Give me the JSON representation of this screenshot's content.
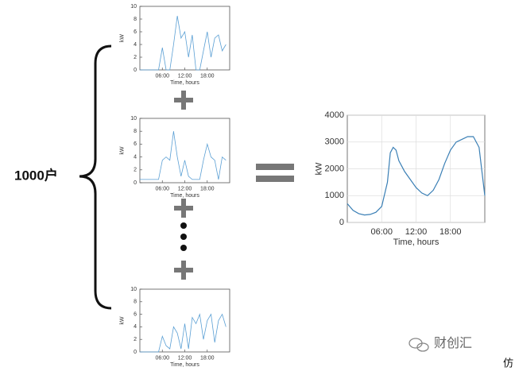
{
  "label": "1000户",
  "watermark": "财创汇",
  "corner_text": "仿",
  "chart_data": [
    {
      "type": "line",
      "xlabel": "Time, hours",
      "ylabel": "kW",
      "color": "#5a9fd4",
      "grid": false,
      "x": [
        0,
        1,
        2,
        3,
        4,
        5,
        6,
        7,
        8,
        9,
        10,
        11,
        12,
        13,
        14,
        15,
        16,
        17,
        18,
        19,
        20,
        21,
        22,
        23
      ],
      "values": [
        0,
        0,
        0,
        0,
        0,
        0,
        3.5,
        0,
        0,
        4,
        8.5,
        5,
        6,
        2,
        5.5,
        0,
        0,
        3,
        6,
        2,
        5,
        5.5,
        3,
        4
      ],
      "xlim": [
        0,
        24
      ],
      "ylim": [
        0,
        10
      ],
      "yticks": [
        0,
        2,
        4,
        6,
        8,
        10
      ],
      "xticks": [
        {
          "value": 6,
          "label": "06:00"
        },
        {
          "value": 12,
          "label": "12:00"
        },
        {
          "value": 18,
          "label": "18:00"
        }
      ]
    },
    {
      "type": "line",
      "xlabel": "Time, hours",
      "ylabel": "kW",
      "color": "#5a9fd4",
      "grid": false,
      "x": [
        0,
        1,
        2,
        3,
        4,
        5,
        6,
        7,
        8,
        9,
        10,
        11,
        12,
        13,
        14,
        15,
        16,
        17,
        18,
        19,
        20,
        21,
        22,
        23
      ],
      "values": [
        0.5,
        0.5,
        0.5,
        0.5,
        0.5,
        0.5,
        3.5,
        4,
        3.5,
        8,
        4,
        1,
        3.5,
        1,
        0.5,
        0.5,
        0.5,
        3.5,
        6,
        4,
        3.5,
        0.5,
        4,
        3.5
      ],
      "xlim": [
        0,
        24
      ],
      "ylim": [
        0,
        10
      ],
      "yticks": [
        0,
        2,
        4,
        6,
        8,
        10
      ],
      "xticks": [
        {
          "value": 6,
          "label": "06:00"
        },
        {
          "value": 12,
          "label": "12:00"
        },
        {
          "value": 18,
          "label": "18:00"
        }
      ]
    },
    {
      "type": "line",
      "xlabel": "Time, hours",
      "ylabel": "kW",
      "color": "#5a9fd4",
      "grid": false,
      "x": [
        0,
        1,
        2,
        3,
        4,
        5,
        6,
        7,
        8,
        9,
        10,
        11,
        12,
        13,
        14,
        15,
        16,
        17,
        18,
        19,
        20,
        21,
        22,
        23
      ],
      "values": [
        0,
        0,
        0,
        0,
        0,
        0,
        2.5,
        1,
        0.5,
        4,
        3,
        0.5,
        4.5,
        0.5,
        5.5,
        4.5,
        6,
        2,
        5,
        6,
        1.5,
        5,
        6,
        4
      ],
      "xlim": [
        0,
        24
      ],
      "ylim": [
        0,
        10
      ],
      "yticks": [
        0,
        2,
        4,
        6,
        8,
        10
      ],
      "xticks": [
        {
          "value": 6,
          "label": "06:00"
        },
        {
          "value": 12,
          "label": "12:00"
        },
        {
          "value": 18,
          "label": "18:00"
        }
      ]
    },
    {
      "type": "line",
      "xlabel": "Time, hours",
      "ylabel": "kW",
      "color": "#3a7fb5",
      "grid": true,
      "x": [
        0,
        1,
        2,
        3,
        4,
        5,
        6,
        7,
        7.5,
        8,
        8.5,
        9,
        10,
        11,
        12,
        13,
        14,
        15,
        16,
        17,
        18,
        19,
        20,
        21,
        22,
        23,
        24
      ],
      "values": [
        700,
        450,
        330,
        280,
        300,
        380,
        600,
        1500,
        2600,
        2800,
        2700,
        2300,
        1900,
        1600,
        1300,
        1100,
        1000,
        1200,
        1600,
        2200,
        2700,
        3000,
        3100,
        3200,
        3200,
        2800,
        1000
      ],
      "xlim": [
        0,
        24
      ],
      "ylim": [
        0,
        4000
      ],
      "yticks": [
        0,
        1000,
        2000,
        3000,
        4000
      ],
      "xticks": [
        {
          "value": 6,
          "label": "06:00"
        },
        {
          "value": 12,
          "label": "12:00"
        },
        {
          "value": 18,
          "label": "18:00"
        }
      ]
    }
  ]
}
